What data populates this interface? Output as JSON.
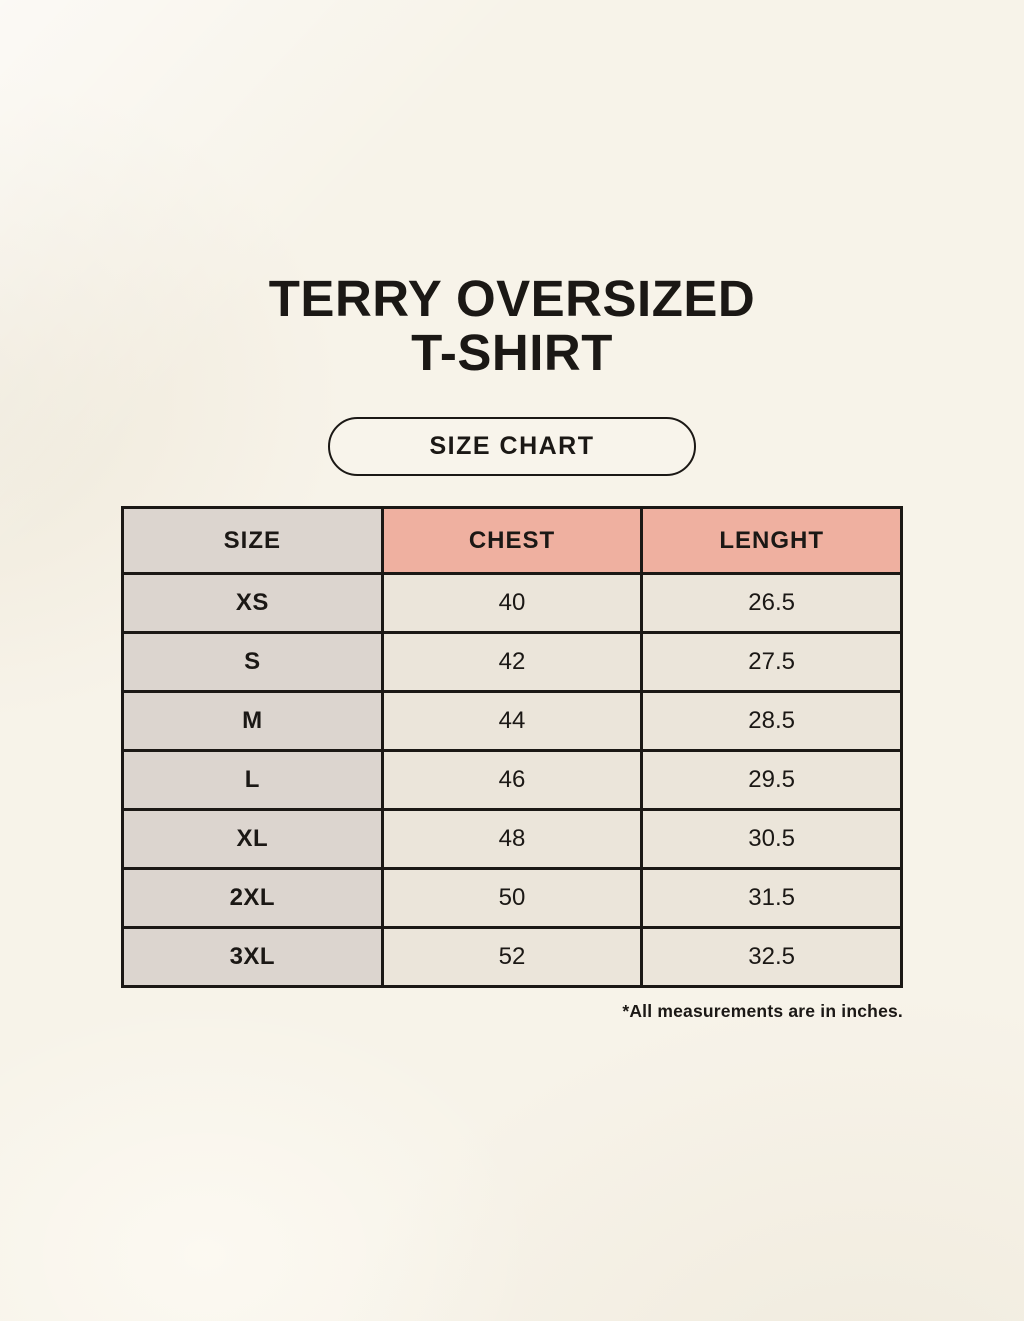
{
  "page": {
    "title_line1": "TERRY OVERSIZED",
    "title_line2": "T-SHIRT",
    "badge_label": "SIZE CHART",
    "footnote": "*All measurements are in inches."
  },
  "table": {
    "columns": [
      "SIZE",
      "CHEST",
      "LENGHT"
    ],
    "rows": [
      {
        "size": "XS",
        "chest": "40",
        "length": "26.5"
      },
      {
        "size": "S",
        "chest": "42",
        "length": "27.5"
      },
      {
        "size": "M",
        "chest": "44",
        "length": "28.5"
      },
      {
        "size": "L",
        "chest": "46",
        "length": "29.5"
      },
      {
        "size": "XL",
        "chest": "48",
        "length": "30.5"
      },
      {
        "size": "2XL",
        "chest": "50",
        "length": "31.5"
      },
      {
        "size": "3XL",
        "chest": "52",
        "length": "32.5"
      }
    ]
  },
  "colors": {
    "background": "#f7f3e9",
    "ink": "#1b1815",
    "size_column": "#dcd5cf",
    "header_accent": "#efb0a0",
    "value_cell": "#ebe5da"
  }
}
